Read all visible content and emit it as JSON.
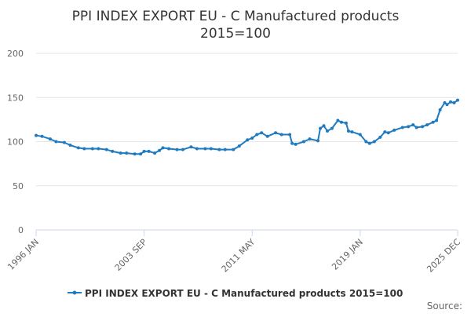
{
  "chart_data": {
    "type": "line",
    "title_lines": [
      "PPI INDEX EXPORT EU - C Manufactured products",
      "2015=100"
    ],
    "x_tick_labels": [
      "1996 JAN",
      "2003 SEP",
      "2011 MAY",
      "2019 JAN",
      "2025 DEC"
    ],
    "x_range": [
      "1996-01",
      "2025-12"
    ],
    "y_ticks": [
      0,
      50,
      100,
      150,
      200
    ],
    "ylim": [
      0,
      200
    ],
    "grid": true,
    "legend": "bottom",
    "source_label": "Source:",
    "series": [
      {
        "name": "PPI INDEX EXPORT EU - C Manufactured products 2015=100",
        "color": "#1f7bc1",
        "points": [
          [
            "1996-01",
            107
          ],
          [
            "1996-06",
            106
          ],
          [
            "1997-01",
            103
          ],
          [
            "1997-06",
            100
          ],
          [
            "1998-01",
            99
          ],
          [
            "1998-06",
            96
          ],
          [
            "1999-01",
            93
          ],
          [
            "1999-06",
            92
          ],
          [
            "2000-01",
            92
          ],
          [
            "2000-06",
            92
          ],
          [
            "2001-01",
            91
          ],
          [
            "2001-06",
            89
          ],
          [
            "2002-01",
            87
          ],
          [
            "2002-06",
            87
          ],
          [
            "2003-01",
            86
          ],
          [
            "2003-06",
            86
          ],
          [
            "2003-09",
            89
          ],
          [
            "2004-01",
            89
          ],
          [
            "2004-06",
            87
          ],
          [
            "2004-10",
            90
          ],
          [
            "2005-01",
            93
          ],
          [
            "2005-06",
            92
          ],
          [
            "2006-01",
            91
          ],
          [
            "2006-06",
            91
          ],
          [
            "2007-01",
            94
          ],
          [
            "2007-06",
            92
          ],
          [
            "2008-01",
            92
          ],
          [
            "2008-06",
            92
          ],
          [
            "2009-01",
            91
          ],
          [
            "2009-06",
            91
          ],
          [
            "2010-01",
            91
          ],
          [
            "2010-06",
            95
          ],
          [
            "2011-01",
            102
          ],
          [
            "2011-05",
            104
          ],
          [
            "2011-09",
            108
          ],
          [
            "2012-01",
            110
          ],
          [
            "2012-06",
            106
          ],
          [
            "2013-01",
            110
          ],
          [
            "2013-06",
            108
          ],
          [
            "2014-01",
            108
          ],
          [
            "2014-03",
            98
          ],
          [
            "2014-06",
            97
          ],
          [
            "2015-01",
            100
          ],
          [
            "2015-06",
            103
          ],
          [
            "2016-01",
            101
          ],
          [
            "2016-03",
            115
          ],
          [
            "2016-06",
            118
          ],
          [
            "2016-09",
            112
          ],
          [
            "2017-01",
            115
          ],
          [
            "2017-06",
            124
          ],
          [
            "2017-09",
            122
          ],
          [
            "2018-01",
            121
          ],
          [
            "2018-03",
            112
          ],
          [
            "2018-06",
            111
          ],
          [
            "2019-01",
            108
          ],
          [
            "2019-06",
            100
          ],
          [
            "2019-09",
            98
          ],
          [
            "2020-01",
            100
          ],
          [
            "2020-06",
            105
          ],
          [
            "2020-10",
            111
          ],
          [
            "2021-01",
            110
          ],
          [
            "2021-06",
            113
          ],
          [
            "2022-01",
            116
          ],
          [
            "2022-06",
            117
          ],
          [
            "2022-10",
            119
          ],
          [
            "2023-01",
            116
          ],
          [
            "2023-06",
            117
          ],
          [
            "2023-10",
            119
          ],
          [
            "2024-03",
            122
          ],
          [
            "2024-06",
            124
          ],
          [
            "2024-09",
            136
          ],
          [
            "2025-01",
            144
          ],
          [
            "2025-03",
            142
          ],
          [
            "2025-06",
            145
          ],
          [
            "2025-09",
            144
          ],
          [
            "2025-12",
            147
          ]
        ]
      }
    ]
  }
}
